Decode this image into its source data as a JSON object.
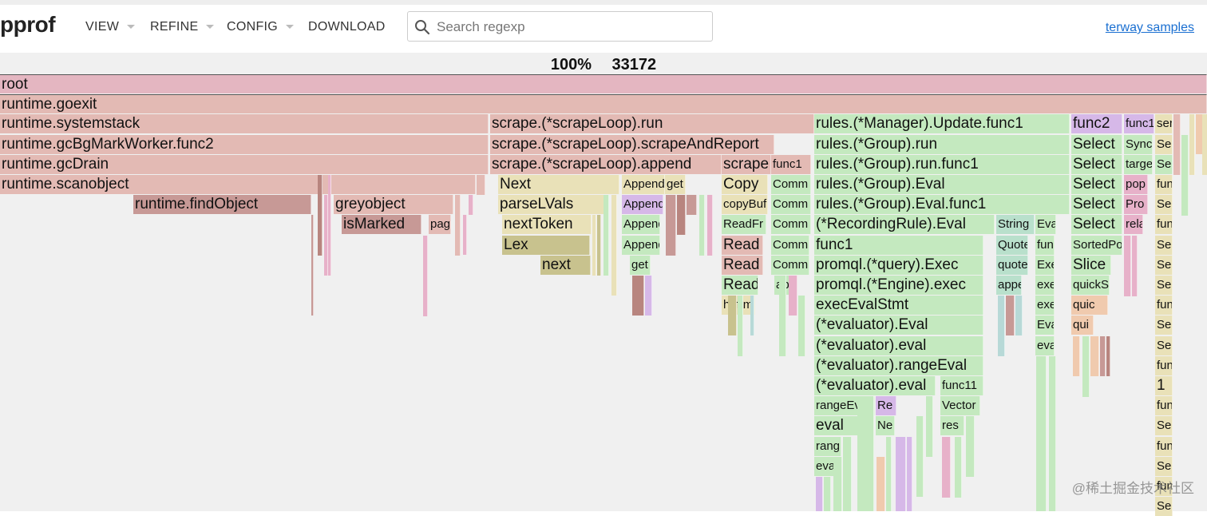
{
  "app": {
    "title": "pprof"
  },
  "menu": [
    {
      "label": "VIEW",
      "has_caret": true
    },
    {
      "label": "REFINE",
      "has_caret": true
    },
    {
      "label": "CONFIG",
      "has_caret": true
    },
    {
      "label": "DOWNLOAD",
      "has_caret": false
    }
  ],
  "search": {
    "placeholder": "Search regexp",
    "value": ""
  },
  "samples_link": "terway samples",
  "summary": {
    "percent": "100%",
    "count": "33172"
  },
  "colors": {
    "root": "#e4b6c1",
    "runtime_dark": "#e3bab4",
    "runtime_med": "#c79996",
    "runtime_deep": "#b8857f",
    "scrape": "#e9e1b8",
    "scrape_dark": "#c8c28e",
    "append": "#d6b8e8",
    "rules": "#c4e9bf",
    "rules_alt": "#b9e0cc",
    "pink": "#e7b1c9",
    "peach": "#f0caae",
    "teal": "#b7d9d7"
  },
  "frames": [
    {
      "label": "root",
      "depth": 0
    },
    {
      "label": "runtime.goexit",
      "depth": 1
    },
    {
      "label": "runtime.systemstack",
      "depth": 2
    },
    {
      "label": "runtime.gcBgMarkWorker.func2",
      "depth": 3
    },
    {
      "label": "runtime.gcDrain",
      "depth": 4
    },
    {
      "label": "runtime.scanobject",
      "depth": 5
    },
    {
      "label": "runtime.findObject",
      "depth": 6
    },
    {
      "label": "greyobject",
      "depth": 6
    },
    {
      "label": "isMarked",
      "depth": 7
    },
    {
      "label": "pag",
      "depth": 7
    },
    {
      "label": "scrape.(*scrapeLoop).run",
      "depth": 2
    },
    {
      "label": "scrape.(*scrapeLoop).scrapeAndReport",
      "depth": 3
    },
    {
      "label": "scrape.(*scrapeLoop).append",
      "depth": 4
    },
    {
      "label": "Next",
      "depth": 5
    },
    {
      "label": "parseLVals",
      "depth": 6
    },
    {
      "label": "nextToken",
      "depth": 7
    },
    {
      "label": "Lex",
      "depth": 8
    },
    {
      "label": "next",
      "depth": 9
    },
    {
      "label": "Append",
      "depth": 5
    },
    {
      "label": "get",
      "depth": 5
    },
    {
      "label": "Append",
      "depth": 6
    },
    {
      "label": "Append",
      "depth": 7
    },
    {
      "label": "Append",
      "depth": 8
    },
    {
      "label": "get",
      "depth": 9
    },
    {
      "label": "scrape",
      "depth": 4
    },
    {
      "label": "Copy",
      "depth": 5
    },
    {
      "label": "copyBuf",
      "depth": 6
    },
    {
      "label": "ReadFr",
      "depth": 7
    },
    {
      "label": "Read",
      "depth": 8
    },
    {
      "label": "Read",
      "depth": 9
    },
    {
      "label": "Read",
      "depth": 10
    },
    {
      "label": "huffm",
      "depth": 11
    },
    {
      "label": "func1",
      "depth": 4
    },
    {
      "label": "Comm",
      "depth": 5
    },
    {
      "label": "Comm",
      "depth": 6
    },
    {
      "label": "Comm",
      "depth": 7
    },
    {
      "label": "Comm",
      "depth": 8
    },
    {
      "label": "Comm",
      "depth": 9
    },
    {
      "label": "app",
      "depth": 10
    },
    {
      "label": "rules.(*Manager).Update.func1",
      "depth": 2
    },
    {
      "label": "rules.(*Group).run",
      "depth": 3
    },
    {
      "label": "rules.(*Group).run.func1",
      "depth": 4
    },
    {
      "label": "rules.(*Group).Eval",
      "depth": 5
    },
    {
      "label": "rules.(*Group).Eval.func1",
      "depth": 6
    },
    {
      "label": "(*RecordingRule).Eval",
      "depth": 7
    },
    {
      "label": "func1",
      "depth": 8
    },
    {
      "label": "promql.(*query).Exec",
      "depth": 9
    },
    {
      "label": "promql.(*Engine).exec",
      "depth": 10
    },
    {
      "label": "execEvalStmt",
      "depth": 11
    },
    {
      "label": "(*evaluator).Eval",
      "depth": 12
    },
    {
      "label": "(*evaluator).eval",
      "depth": 13
    },
    {
      "label": "(*evaluator).rangeEval",
      "depth": 14
    },
    {
      "label": "(*evaluator).eval",
      "depth": 15
    },
    {
      "label": "rangeEval",
      "depth": 16
    },
    {
      "label": "eval",
      "depth": 17
    },
    {
      "label": "rang",
      "depth": 18
    },
    {
      "label": "eva",
      "depth": 19
    },
    {
      "label": "Re",
      "depth": 16
    },
    {
      "label": "Ne",
      "depth": 17
    },
    {
      "label": "func11",
      "depth": 15
    },
    {
      "label": "Vector",
      "depth": 16
    },
    {
      "label": "res",
      "depth": 17
    },
    {
      "label": "String",
      "depth": 7
    },
    {
      "label": "Quote",
      "depth": 8
    },
    {
      "label": "quote",
      "depth": 9
    },
    {
      "label": "appe",
      "depth": 10
    },
    {
      "label": "Eva",
      "depth": 7
    },
    {
      "label": "func",
      "depth": 8
    },
    {
      "label": "Exe",
      "depth": 9
    },
    {
      "label": "exe",
      "depth": 10
    },
    {
      "label": "exe",
      "depth": 11
    },
    {
      "label": "Eva",
      "depth": 12
    },
    {
      "label": "eva",
      "depth": 13
    },
    {
      "label": "func2",
      "depth": 2
    },
    {
      "label": "Select",
      "depth": 3
    },
    {
      "label": "Select",
      "depth": 4
    },
    {
      "label": "Select",
      "depth": 5
    },
    {
      "label": "Select",
      "depth": 6
    },
    {
      "label": "Select",
      "depth": 7
    },
    {
      "label": "SortedPo",
      "depth": 8
    },
    {
      "label": "Slice",
      "depth": 9
    },
    {
      "label": "quickS",
      "depth": 10
    },
    {
      "label": "quic",
      "depth": 11
    },
    {
      "label": "qui",
      "depth": 12
    },
    {
      "label": "func1",
      "depth": 2
    },
    {
      "label": "Sync",
      "depth": 3
    },
    {
      "label": "targe",
      "depth": 4
    },
    {
      "label": "pop",
      "depth": 5
    },
    {
      "label": "Pro",
      "depth": 6
    },
    {
      "label": "rela",
      "depth": 7
    },
    {
      "label": "ser",
      "depth": 2
    },
    {
      "label": "Se",
      "depth": 3
    },
    {
      "label": "Se",
      "depth": 4
    },
    {
      "label": "fun",
      "depth": 5
    },
    {
      "label": "Se",
      "depth": 6
    },
    {
      "label": "fun",
      "depth": 7
    },
    {
      "label": "Se",
      "depth": 8
    },
    {
      "label": "Se",
      "depth": 9
    },
    {
      "label": "Se",
      "depth": 10
    },
    {
      "label": "fun",
      "depth": 11
    },
    {
      "label": "Se",
      "depth": 12
    },
    {
      "label": "Se",
      "depth": 13
    },
    {
      "label": "fun",
      "depth": 14
    },
    {
      "label": "1",
      "depth": 15
    },
    {
      "label": "fun",
      "depth": 16
    },
    {
      "label": "Se",
      "depth": 17
    },
    {
      "label": "fun",
      "depth": 18
    },
    {
      "label": "Se",
      "depth": 19
    },
    {
      "label": "fun",
      "depth": 20
    },
    {
      "label": "Se",
      "depth": 21
    }
  ],
  "watermark": "@稀土掘金技术社区"
}
